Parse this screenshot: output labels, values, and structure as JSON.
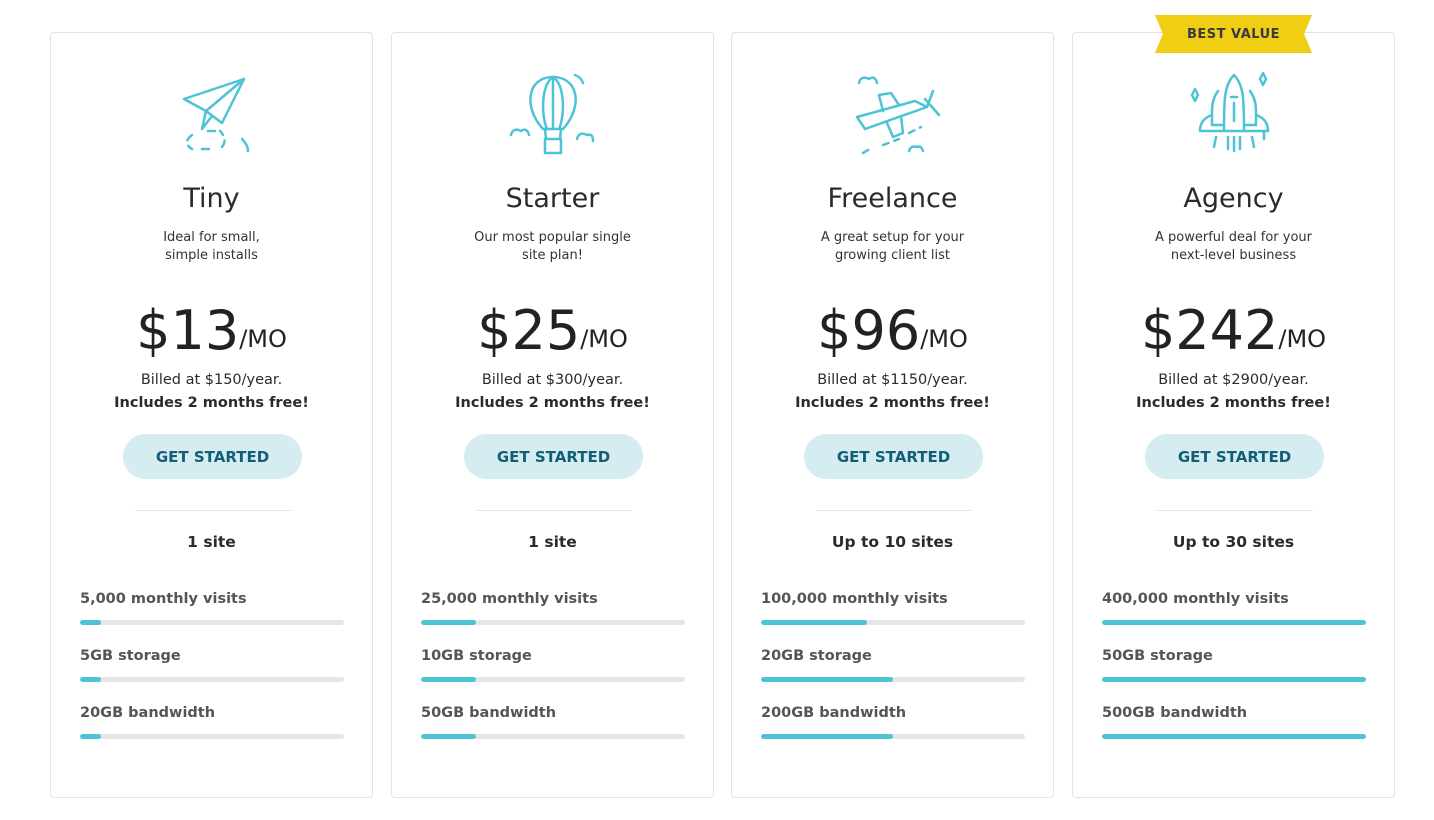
{
  "badge": "BEST VALUE",
  "accent": "#4dc3d6",
  "plans": [
    {
      "icon": "paper-plane-icon",
      "name": "Tiny",
      "desc1": "Ideal for small,",
      "desc2": "simple installs",
      "price": "$13",
      "per": "/MO",
      "billed": "Billed at $150/year.",
      "free": "Includes 2 months free!",
      "cta": "GET STARTED",
      "sites": "1 site",
      "features": [
        {
          "label": "5,000 monthly visits",
          "pct": 8
        },
        {
          "label": "5GB storage",
          "pct": 8
        },
        {
          "label": "20GB bandwidth",
          "pct": 8
        }
      ]
    },
    {
      "icon": "hot-air-balloon-icon",
      "name": "Starter",
      "desc1": "Our most popular single",
      "desc2": "site plan!",
      "price": "$25",
      "per": "/MO",
      "billed": "Billed at $300/year.",
      "free": "Includes 2 months free!",
      "cta": "GET STARTED",
      "sites": "1 site",
      "features": [
        {
          "label": "25,000 monthly visits",
          "pct": 21
        },
        {
          "label": "10GB storage",
          "pct": 21
        },
        {
          "label": "50GB bandwidth",
          "pct": 21
        }
      ]
    },
    {
      "icon": "airplane-icon",
      "name": "Freelance",
      "desc1": "A great setup for your",
      "desc2": "growing client list",
      "price": "$96",
      "per": "/MO",
      "billed": "Billed at $1150/year.",
      "free": "Includes 2 months free!",
      "cta": "GET STARTED",
      "sites": "Up to 10 sites",
      "features": [
        {
          "label": "100,000 monthly visits",
          "pct": 40
        },
        {
          "label": "20GB storage",
          "pct": 50
        },
        {
          "label": "200GB bandwidth",
          "pct": 50
        }
      ]
    },
    {
      "icon": "space-shuttle-icon",
      "name": "Agency",
      "desc1": "A powerful deal for your",
      "desc2": "next-level business",
      "price": "$242",
      "per": "/MO",
      "billed": "Billed at $2900/year.",
      "free": "Includes 2 months free!",
      "cta": "GET STARTED",
      "sites": "Up to 30 sites",
      "features": [
        {
          "label": "400,000 monthly visits",
          "pct": 100
        },
        {
          "label": "50GB storage",
          "pct": 100
        },
        {
          "label": "500GB bandwidth",
          "pct": 100
        }
      ]
    }
  ]
}
